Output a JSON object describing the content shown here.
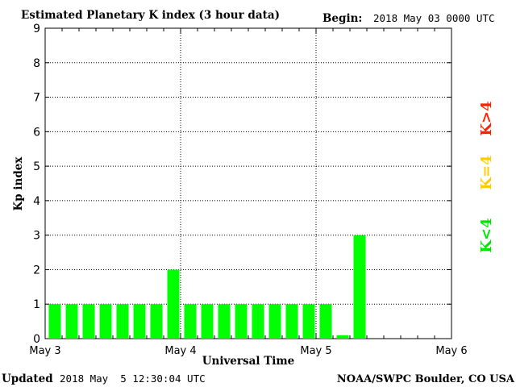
{
  "chart_data": {
    "type": "bar",
    "title": "Estimated Planetary K index (3 hour data)",
    "begin_label": "Begin:",
    "begin_value": "2018 May 03 0000 UTC",
    "ylabel": "Kp index",
    "xlabel": "Universal Time",
    "ylim": [
      0,
      9
    ],
    "yticks": [
      "0",
      "1",
      "2",
      "3",
      "4",
      "5",
      "6",
      "7",
      "8",
      "9"
    ],
    "xticks": [
      "May 3",
      "May 4",
      "May 5",
      "May 6"
    ],
    "grid": true,
    "bar_color": "#00ff00",
    "values": [
      1,
      1,
      1,
      1,
      1,
      1,
      1,
      2,
      1,
      1,
      1,
      1,
      1,
      1,
      1,
      1,
      1,
      0.1,
      3
    ],
    "legend": [
      {
        "text": "K<4",
        "color": "#00e600"
      },
      {
        "text": "K=4",
        "color": "#ffcc00"
      },
      {
        "text": "K>4",
        "color": "#ff2000"
      }
    ]
  },
  "footer": {
    "updated_label": "Updated",
    "updated_value": "2018 May  5 12:30:04 UTC",
    "source": "NOAA/SWPC Boulder, CO USA"
  }
}
